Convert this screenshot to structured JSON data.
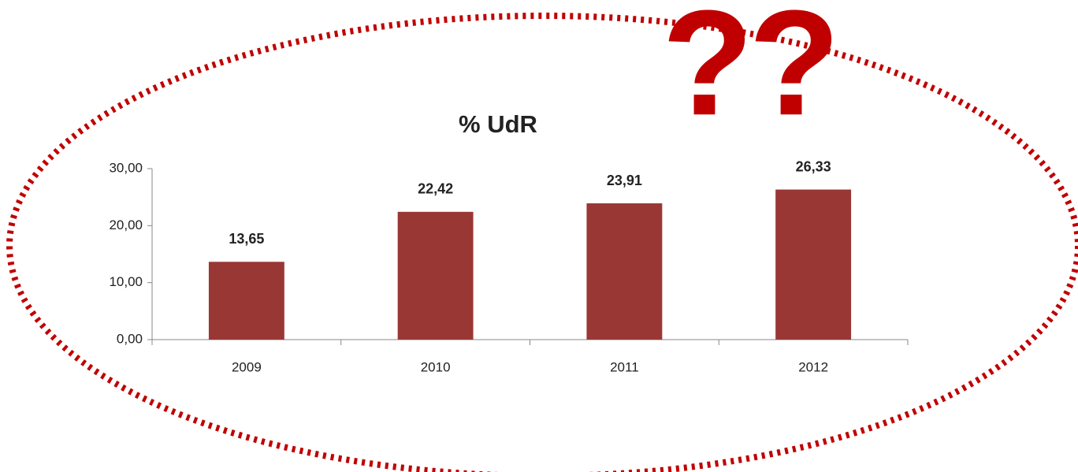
{
  "chart_data": {
    "type": "bar",
    "title": "% UdR",
    "annotation": "??",
    "categories": [
      "2009",
      "2010",
      "2011",
      "2012"
    ],
    "values": [
      13.65,
      22.42,
      23.91,
      26.33
    ],
    "value_labels": [
      "13,65",
      "22,42",
      "23,91",
      "26,33"
    ],
    "color": "#993735",
    "annotation_color": "#c00000",
    "ylim": [
      0,
      30
    ],
    "yticks": [
      {
        "value": 0,
        "label": "0,00"
      },
      {
        "value": 10,
        "label": "10,00"
      },
      {
        "value": 20,
        "label": "20,00"
      },
      {
        "value": 30,
        "label": "30,00"
      }
    ],
    "grid": false
  }
}
